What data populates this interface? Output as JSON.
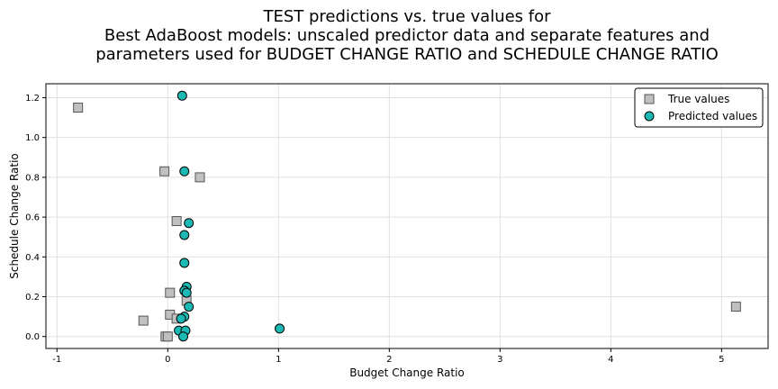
{
  "chart_data": {
    "type": "scatter",
    "title_lines": [
      "TEST predictions vs. true values for",
      "Best AdaBoost models: unscaled predictor data and separate features and",
      "parameters used for BUDGET CHANGE RATIO and SCHEDULE CHANGE RATIO"
    ],
    "xlabel": "Budget Change Ratio",
    "ylabel": "Schedule Change Ratio",
    "xlim": [
      -1.1,
      5.42
    ],
    "ylim": [
      -0.06,
      1.27
    ],
    "xticks": [
      -1,
      0,
      1,
      2,
      3,
      4,
      5
    ],
    "yticks": [
      0.0,
      0.2,
      0.4,
      0.6,
      0.8,
      1.0,
      1.2
    ],
    "grid": true,
    "legend_position": "top-right",
    "series": [
      {
        "name": "True values",
        "marker": "square",
        "color": "#c0c0c0",
        "points": [
          {
            "x": -0.81,
            "y": 1.15
          },
          {
            "x": -0.03,
            "y": 0.83
          },
          {
            "x": 0.29,
            "y": 0.8
          },
          {
            "x": 0.08,
            "y": 0.58
          },
          {
            "x": 0.02,
            "y": 0.22
          },
          {
            "x": 0.17,
            "y": 0.18
          },
          {
            "x": 0.02,
            "y": 0.11
          },
          {
            "x": 0.08,
            "y": 0.09
          },
          {
            "x": -0.22,
            "y": 0.08
          },
          {
            "x": -0.02,
            "y": 0.0
          },
          {
            "x": 0.0,
            "y": 0.0
          },
          {
            "x": 5.13,
            "y": 0.15
          }
        ]
      },
      {
        "name": "Predicted values",
        "marker": "circle",
        "color": "#1ab9b3",
        "points": [
          {
            "x": 0.13,
            "y": 1.21
          },
          {
            "x": 0.15,
            "y": 0.83
          },
          {
            "x": 0.19,
            "y": 0.57
          },
          {
            "x": 0.15,
            "y": 0.51
          },
          {
            "x": 0.15,
            "y": 0.37
          },
          {
            "x": 0.17,
            "y": 0.25
          },
          {
            "x": 0.15,
            "y": 0.23
          },
          {
            "x": 0.17,
            "y": 0.22
          },
          {
            "x": 0.19,
            "y": 0.15
          },
          {
            "x": 0.15,
            "y": 0.1
          },
          {
            "x": 0.12,
            "y": 0.09
          },
          {
            "x": 0.1,
            "y": 0.03
          },
          {
            "x": 0.16,
            "y": 0.03
          },
          {
            "x": 0.14,
            "y": 0.0
          },
          {
            "x": 1.01,
            "y": 0.04
          }
        ]
      }
    ]
  }
}
